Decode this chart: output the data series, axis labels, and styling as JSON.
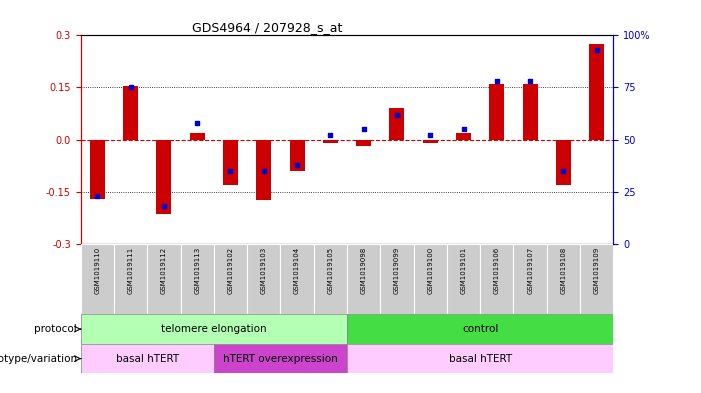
{
  "title": "GDS4964 / 207928_s_at",
  "samples": [
    "GSM1019110",
    "GSM1019111",
    "GSM1019112",
    "GSM1019113",
    "GSM1019102",
    "GSM1019103",
    "GSM1019104",
    "GSM1019105",
    "GSM1019098",
    "GSM1019099",
    "GSM1019100",
    "GSM1019101",
    "GSM1019106",
    "GSM1019107",
    "GSM1019108",
    "GSM1019109"
  ],
  "bar_values": [
    -0.17,
    0.155,
    -0.215,
    0.02,
    -0.13,
    -0.175,
    -0.09,
    -0.01,
    -0.02,
    0.09,
    -0.01,
    0.02,
    0.16,
    0.16,
    -0.13,
    0.275
  ],
  "dot_values": [
    23,
    75,
    18,
    58,
    35,
    35,
    38,
    52,
    55,
    62,
    52,
    55,
    78,
    78,
    35,
    93
  ],
  "ylim": [
    -0.3,
    0.3
  ],
  "yticks_left": [
    -0.3,
    -0.15,
    0.0,
    0.15,
    0.3
  ],
  "yticks_right": [
    0,
    25,
    50,
    75,
    100
  ],
  "bar_color": "#cc0000",
  "dot_color": "#0000cc",
  "zero_line_color": "#cc0000",
  "dotted_line_color": "#000000",
  "protocol_labels": [
    "telomere elongation",
    "control"
  ],
  "protocol_ranges": [
    [
      0,
      7
    ],
    [
      8,
      15
    ]
  ],
  "protocol_colors": [
    "#b3ffb3",
    "#44dd44"
  ],
  "genotype_labels": [
    "basal hTERT",
    "hTERT overexpression",
    "basal hTERT"
  ],
  "genotype_ranges": [
    [
      0,
      3
    ],
    [
      4,
      7
    ],
    [
      8,
      15
    ]
  ],
  "genotype_colors": [
    "#ffccff",
    "#cc44cc",
    "#ffccff"
  ],
  "bg_color": "#ffffff",
  "tick_bg_color": "#cccccc",
  "left_axis_color": "#cc0000",
  "right_axis_color": "#0000cc"
}
